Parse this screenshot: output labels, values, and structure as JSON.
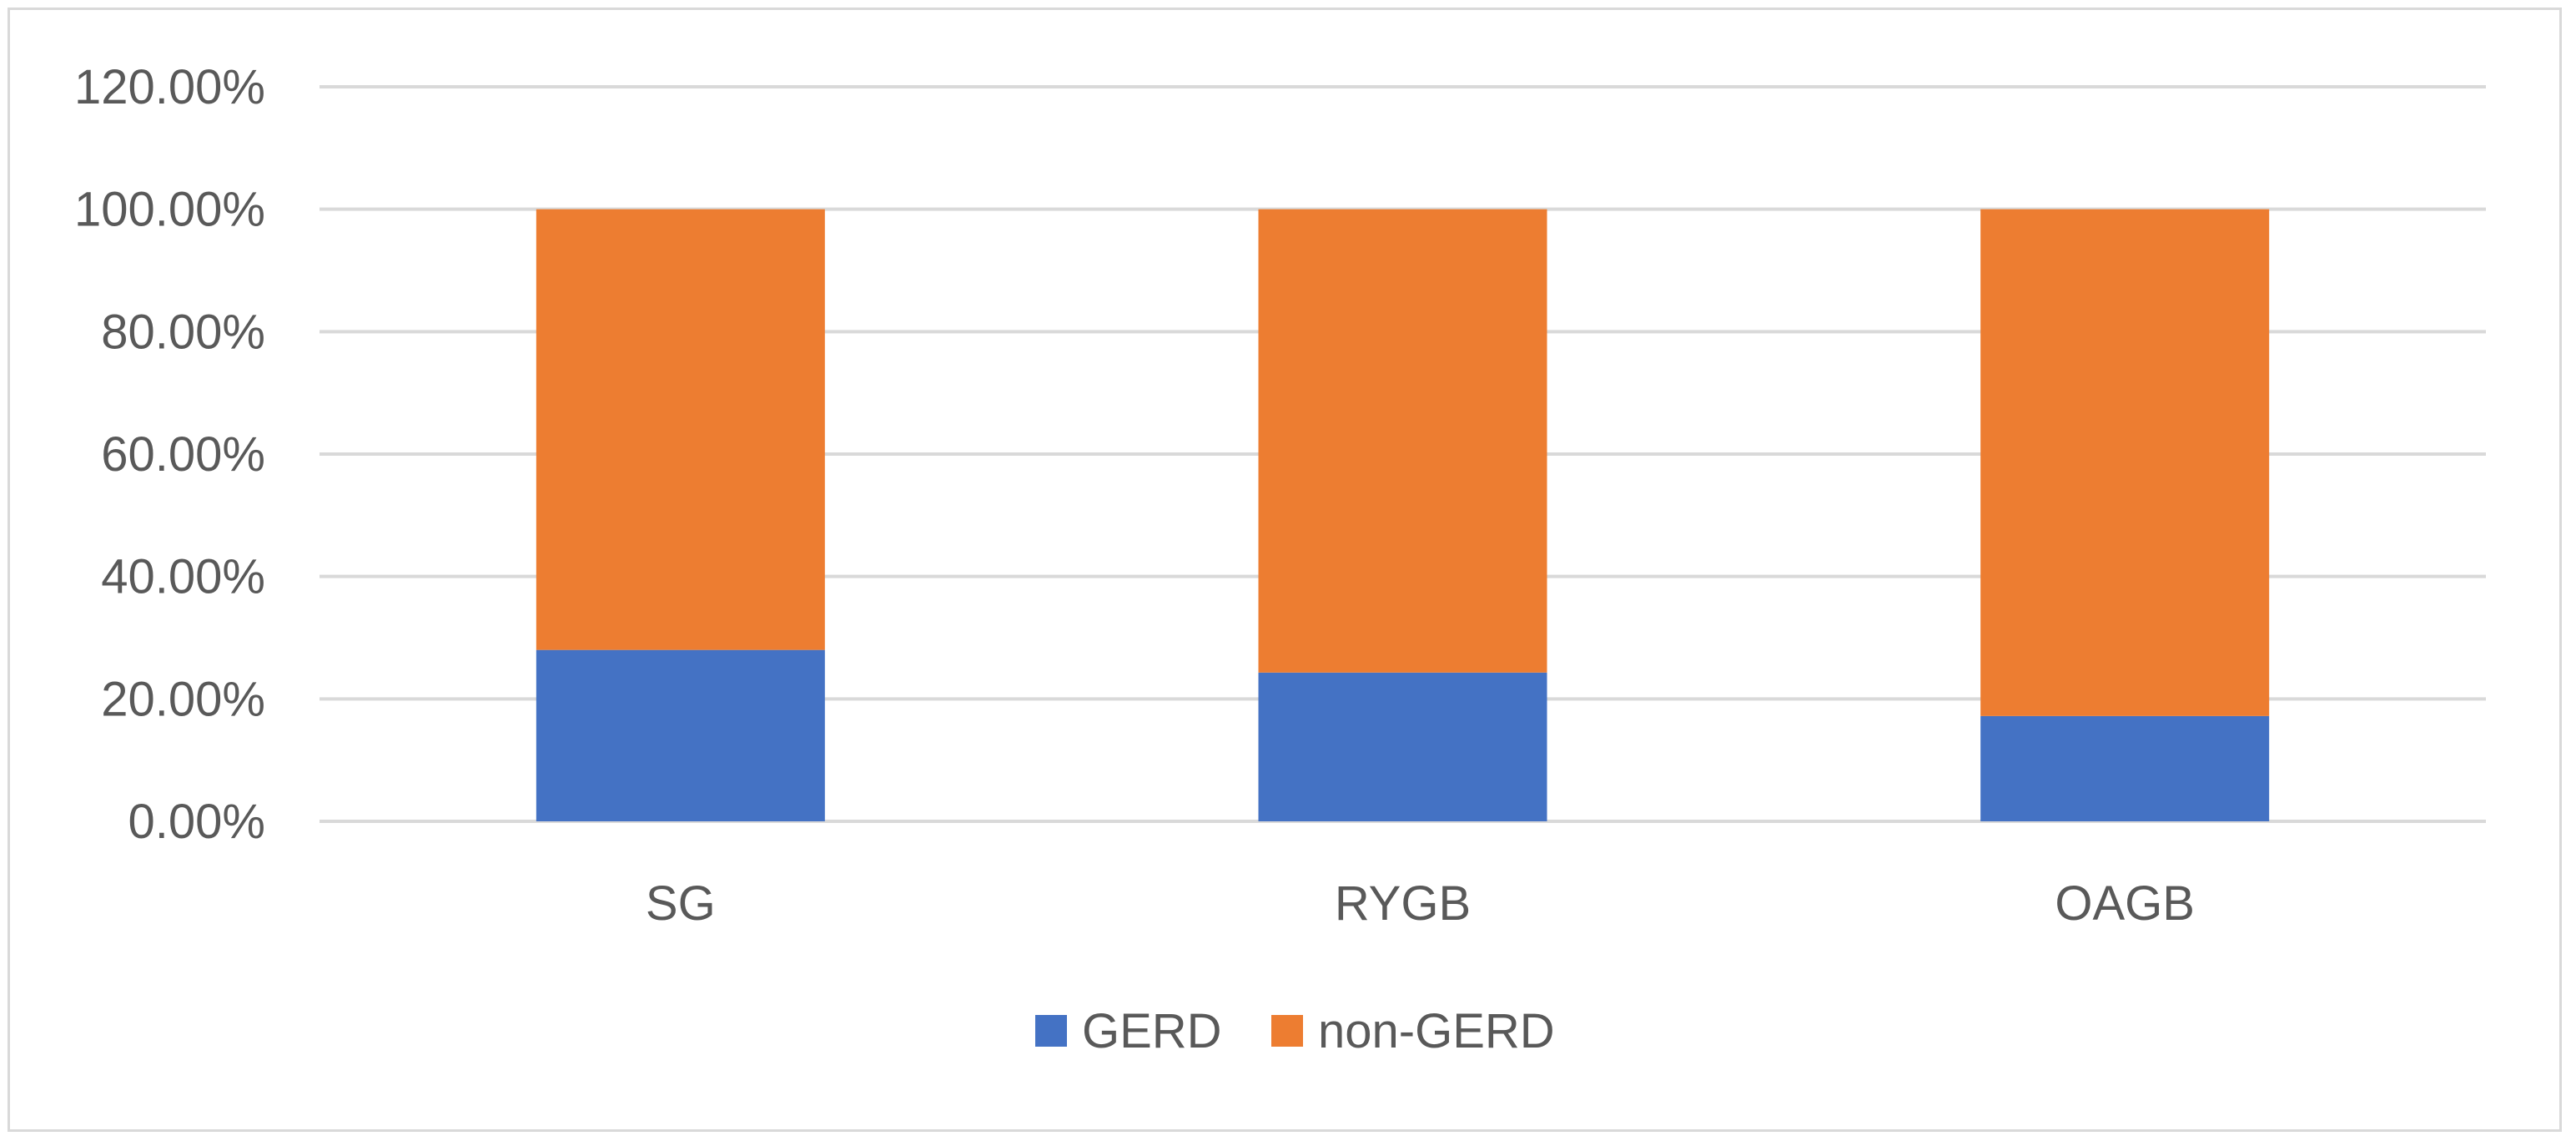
{
  "chart_data": {
    "type": "bar",
    "stacked": true,
    "categories": [
      "SG",
      "RYGB",
      "OAGB"
    ],
    "series": [
      {
        "name": "GERD",
        "values": [
          28.0,
          24.3,
          17.2
        ],
        "color": "#4472c4"
      },
      {
        "name": "non-GERD",
        "values": [
          72.0,
          75.7,
          82.8
        ],
        "color": "#ed7d31"
      }
    ],
    "yticks": [
      "0.00%",
      "20.00%",
      "40.00%",
      "60.00%",
      "80.00%",
      "100.00%",
      "120.00%"
    ],
    "ylim": [
      0,
      120
    ],
    "grid": true,
    "legend_position": "bottom",
    "gridline_color": "#d9d9d9",
    "label_color": "#595959"
  }
}
